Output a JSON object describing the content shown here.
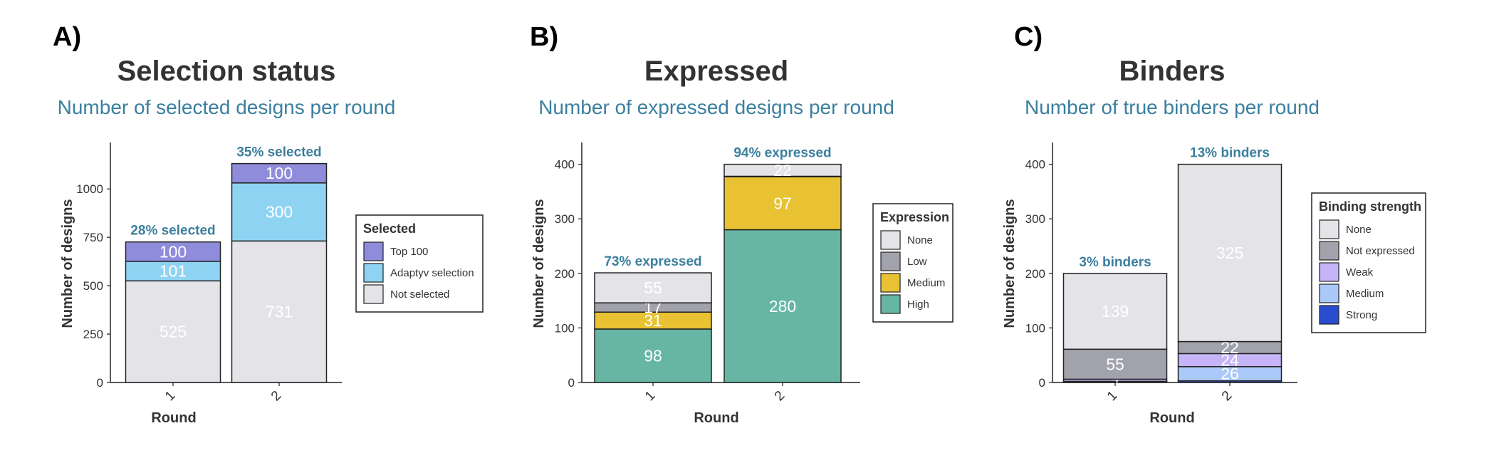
{
  "panels": [
    {
      "letter": "A)",
      "title": "Selection status",
      "subtitle": "Number of selected designs per round",
      "ylabel": "Number of designs",
      "xlabel": "Round",
      "legend_title": "Selected",
      "legend_items": [
        "Top 100",
        "Adaptyv selection",
        "Not selected"
      ]
    },
    {
      "letter": "B)",
      "title": "Expressed",
      "subtitle": "Number of expressed designs per round",
      "ylabel": "Number of designs",
      "xlabel": "Round",
      "legend_title": "Expression",
      "legend_items": [
        "None",
        "Low",
        "Medium",
        "High"
      ]
    },
    {
      "letter": "C)",
      "title": "Binders",
      "subtitle": "Number of true binders per round",
      "ylabel": "Number of designs",
      "xlabel": "Round",
      "legend_title": "Binding strength",
      "legend_items": [
        "None",
        "Not expressed",
        "Weak",
        "Medium",
        "Strong"
      ]
    }
  ],
  "chart_data": [
    {
      "type": "bar",
      "stacked": true,
      "title": "Selection status",
      "subtitle": "Number of selected designs per round",
      "xlabel": "Round",
      "ylabel": "Number of designs",
      "categories": [
        "1",
        "2"
      ],
      "ylim": [
        0,
        1240
      ],
      "yticks": [
        0,
        250,
        500,
        750,
        1000
      ],
      "series": [
        {
          "name": "Not selected",
          "values": [
            525,
            731
          ],
          "color": "#e4e4e8"
        },
        {
          "name": "Adaptyv selection",
          "values": [
            101,
            300
          ],
          "color": "#8fd3f3"
        },
        {
          "name": "Top 100",
          "values": [
            100,
            100
          ],
          "color": "#8e8cdb"
        }
      ],
      "legend_title": "Selected",
      "legend_order": [
        "Top 100",
        "Adaptyv selection",
        "Not selected"
      ],
      "legend_position": "right",
      "annotations": [
        "28% selected",
        "35% selected"
      ],
      "grid": false
    },
    {
      "type": "bar",
      "stacked": true,
      "title": "Expressed",
      "subtitle": "Number of expressed designs per round",
      "xlabel": "Round",
      "ylabel": "Number of designs",
      "categories": [
        "1",
        "2"
      ],
      "ylim": [
        0,
        440
      ],
      "yticks": [
        0,
        100,
        200,
        300,
        400
      ],
      "series": [
        {
          "name": "High",
          "values": [
            98,
            280
          ],
          "color": "#67b6a4"
        },
        {
          "name": "Medium",
          "values": [
            31,
            97
          ],
          "color": "#e8c232"
        },
        {
          "name": "Low",
          "values": [
            17,
            1
          ],
          "color": "#a2a2ad"
        },
        {
          "name": "None",
          "values": [
            55,
            22
          ],
          "color": "#e4e4e8"
        }
      ],
      "segment_labels": [
        [
          "98",
          "31",
          "17",
          "55"
        ],
        [
          "280",
          "97",
          "",
          "22"
        ]
      ],
      "legend_title": "Expression",
      "legend_order": [
        "None",
        "Low",
        "Medium",
        "High"
      ],
      "legend_position": "right",
      "annotations": [
        "73% expressed",
        "94% expressed"
      ],
      "grid": false
    },
    {
      "type": "bar",
      "stacked": true,
      "title": "Binders",
      "subtitle": "Number of true binders per round",
      "xlabel": "Round",
      "ylabel": "Number of designs",
      "categories": [
        "1",
        "2"
      ],
      "ylim": [
        0,
        440
      ],
      "yticks": [
        0,
        100,
        200,
        300,
        400
      ],
      "series": [
        {
          "name": "Strong",
          "values": [
            1,
            3
          ],
          "color": "#2a4dd0"
        },
        {
          "name": "Medium",
          "values": [
            1,
            26
          ],
          "color": "#aac8f8"
        },
        {
          "name": "Weak",
          "values": [
            4,
            24
          ],
          "color": "#c6b4f8"
        },
        {
          "name": "Not expressed",
          "values": [
            55,
            22
          ],
          "color": "#a2a2ad"
        },
        {
          "name": "None",
          "values": [
            139,
            325
          ],
          "color": "#e4e4e8"
        }
      ],
      "segment_labels": [
        [
          "",
          "",
          "4",
          "55",
          "139"
        ],
        [
          "",
          "26",
          "24",
          "22",
          "325"
        ]
      ],
      "legend_title": "Binding strength",
      "legend_order": [
        "None",
        "Not expressed",
        "Weak",
        "Medium",
        "Strong"
      ],
      "legend_position": "right",
      "annotations": [
        "3% binders",
        "13% binders"
      ],
      "grid": false
    }
  ]
}
